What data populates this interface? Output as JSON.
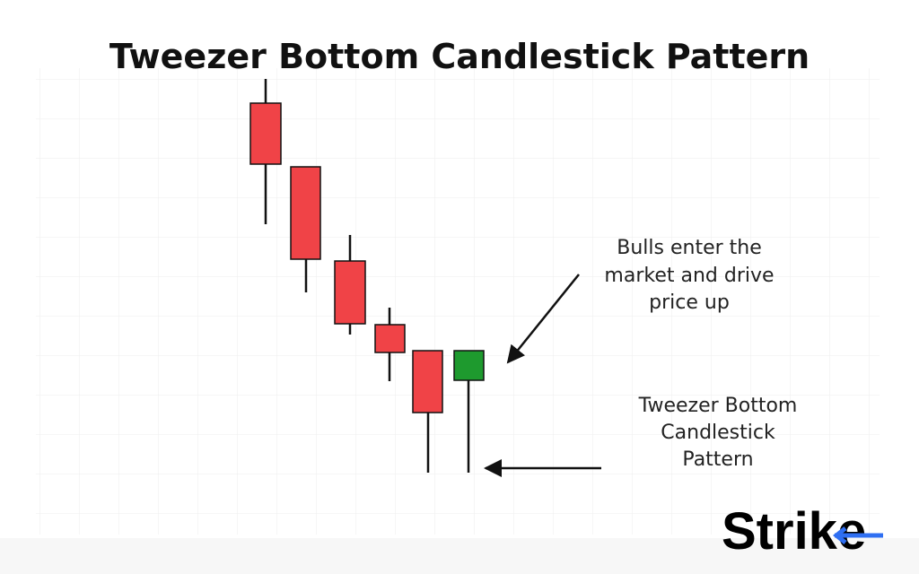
{
  "header": {
    "title": "Tweezer Bottom Candlestick Pattern"
  },
  "annotations": [
    {
      "lines": [
        "Bulls enter the",
        "market and drive",
        "price up"
      ]
    },
    {
      "lines": [
        "Tweezer Bottom",
        "Candlestick",
        "Pattern"
      ]
    }
  ],
  "logo": {
    "text": "Strike"
  }
}
